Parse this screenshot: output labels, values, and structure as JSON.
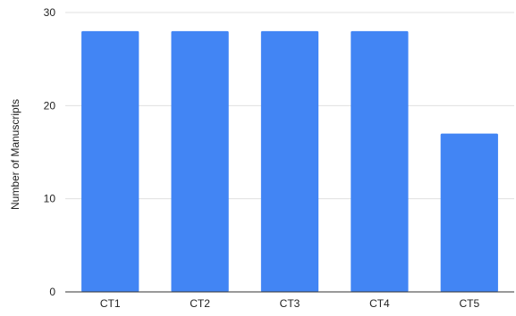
{
  "chart_data": {
    "type": "bar",
    "title": "",
    "xlabel": "",
    "ylabel": "Number of Manuscripts",
    "categories": [
      "CT1",
      "CT2",
      "CT3",
      "CT4",
      "CT5"
    ],
    "values": [
      28,
      28,
      28,
      28,
      17
    ],
    "ylim": [
      0,
      30
    ],
    "yticks": [
      0,
      10,
      20,
      30
    ],
    "grid": true,
    "legend": "none",
    "bar_color": "#4285F4",
    "grid_color": "#E0E0E0",
    "axis_color": "#333333"
  }
}
